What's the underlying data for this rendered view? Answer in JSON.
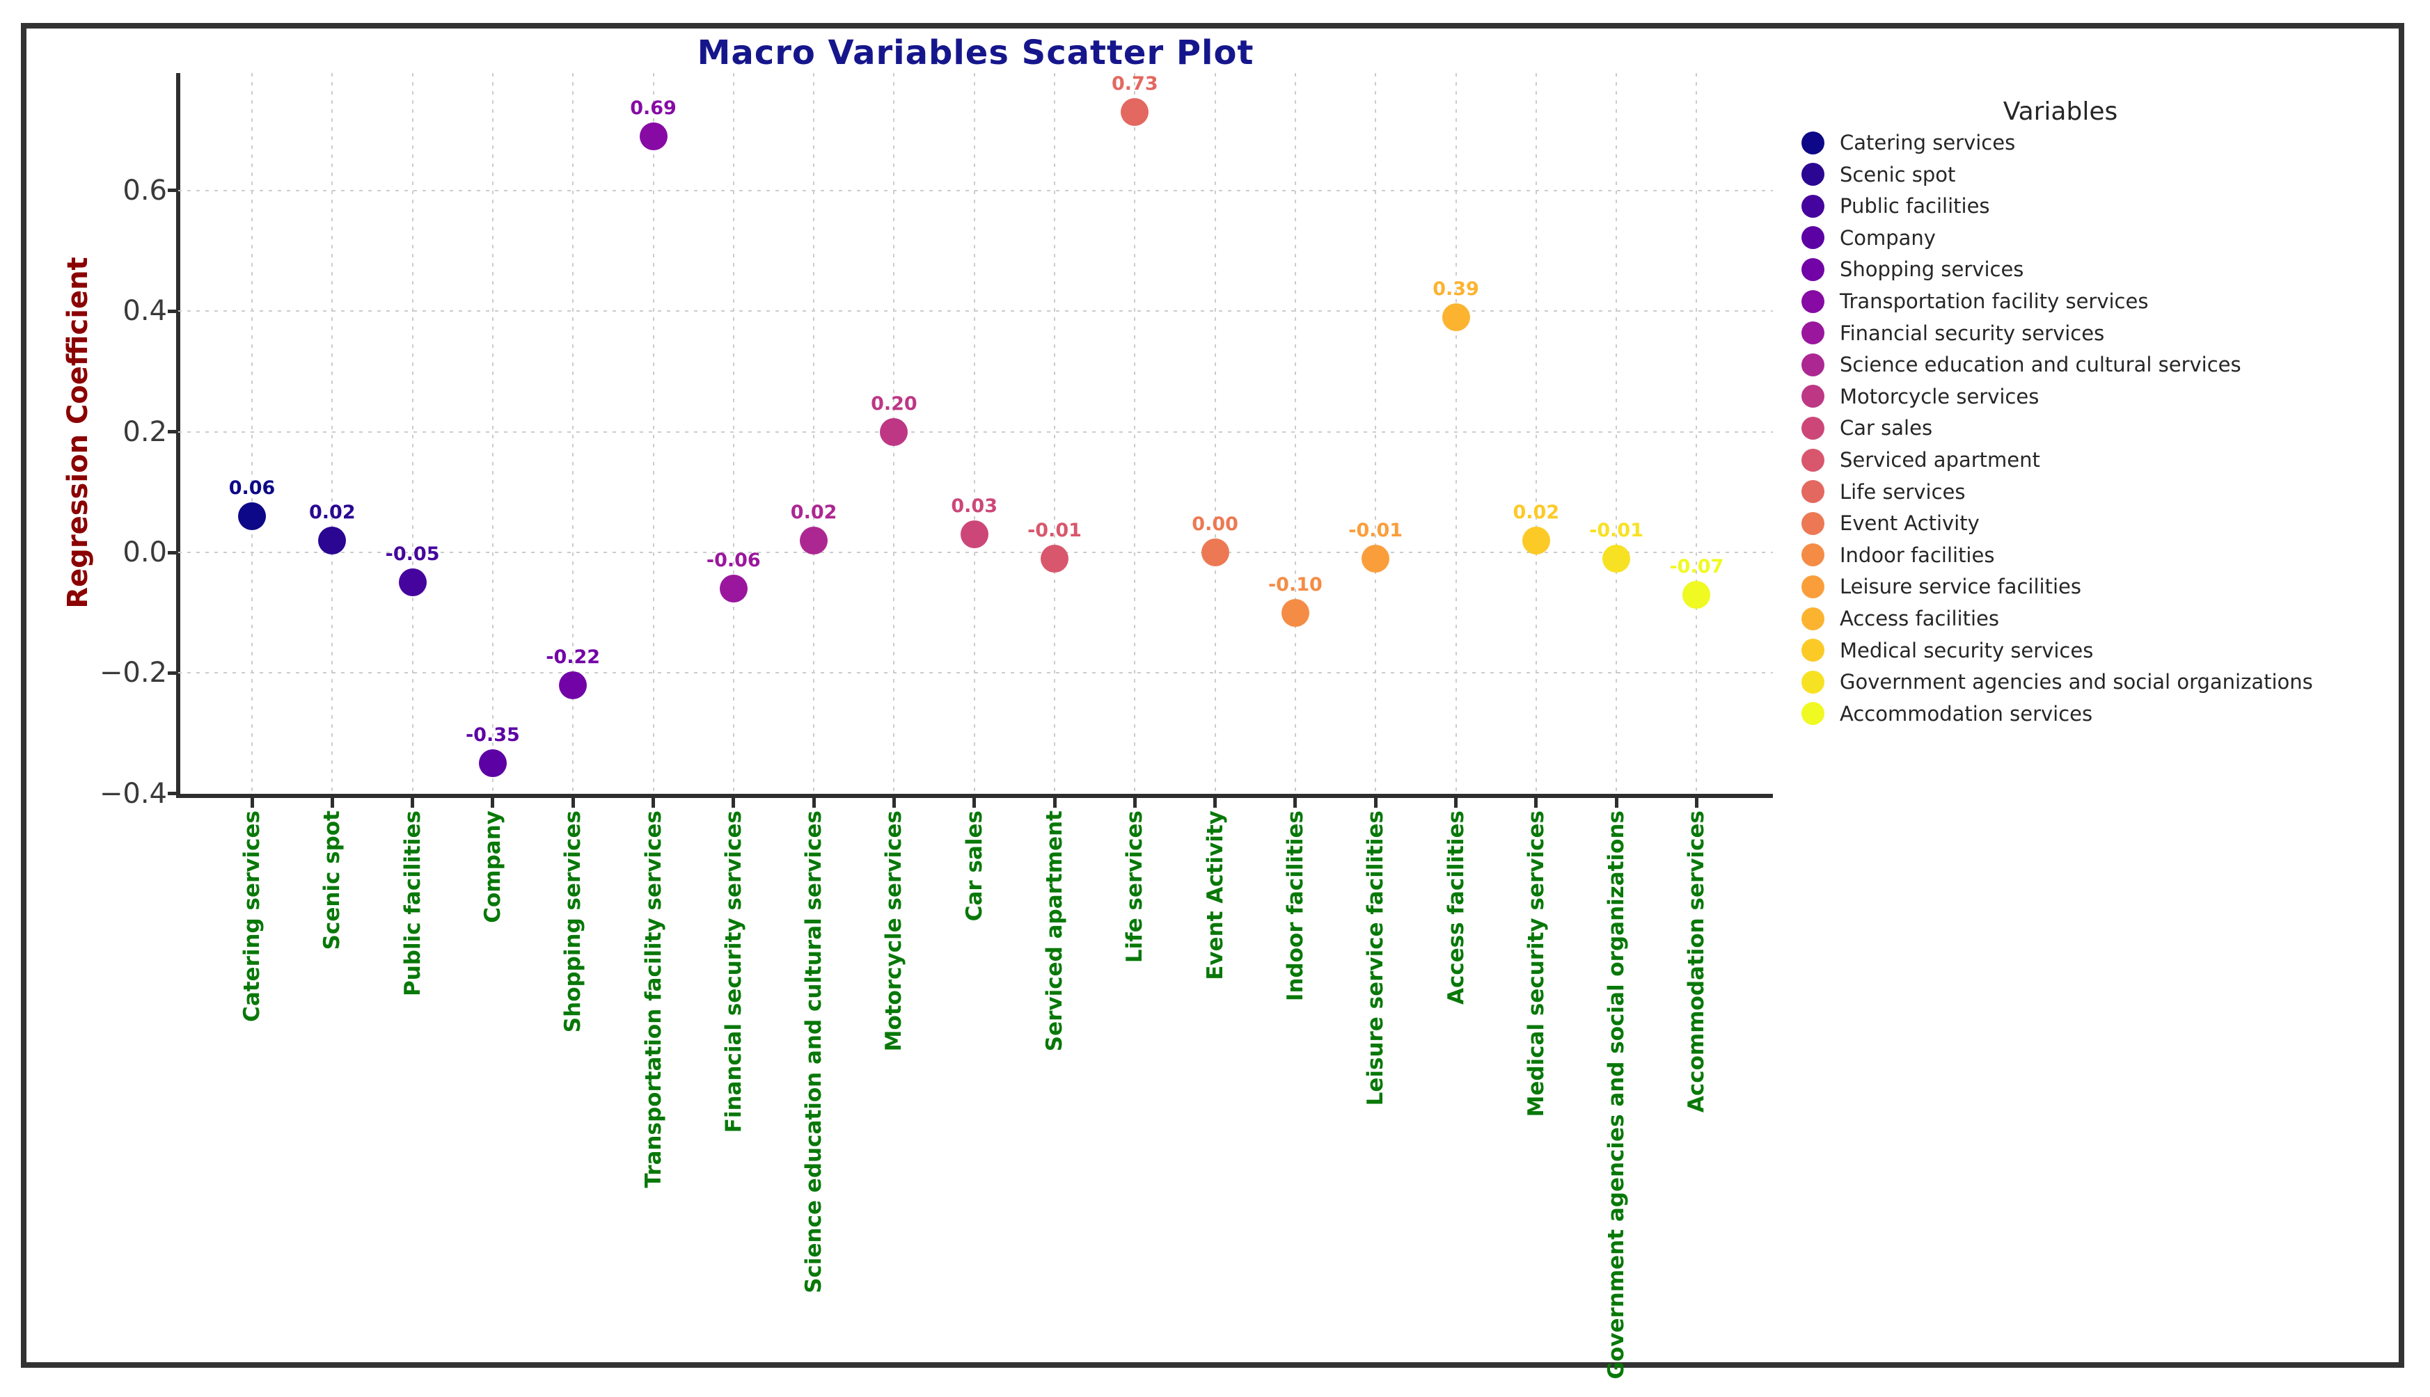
{
  "title": "Macro Variables Scatter Plot",
  "colors": {
    "title": "#16168c",
    "ylabel": "#8B0000",
    "xlabels": "#087808",
    "ticks": "#3a3a3a",
    "grid": "#cccccc",
    "axis": "#2e2e2e",
    "frame": "#333333",
    "legend_text": "#262626"
  },
  "chart_data": {
    "type": "scatter",
    "title": "Macro Variables Scatter Plot",
    "xlabel": "",
    "ylabel": "Regression Coefficient",
    "legend_title": "Variables",
    "legend_position": "right",
    "grid": true,
    "ylim": [
      -0.4,
      0.79
    ],
    "yticks": [
      0.6,
      0.4,
      0.2,
      0.0,
      -0.2,
      -0.4
    ],
    "ytick_labels": [
      "0.6",
      "0.4",
      "0.2",
      "0.0",
      "−0.2",
      "−0.4"
    ],
    "categories": [
      "Catering services",
      "Scenic spot",
      "Public facilities",
      "Company",
      "Shopping services",
      "Transportation facility services",
      "Financial security services",
      "Science education and cultural services",
      "Motorcycle services",
      "Car sales",
      "Serviced apartment",
      "Life services",
      "Event Activity",
      "Indoor facilities",
      "Leisure service facilities",
      "Access facilities",
      "Medical security services",
      "Government agencies and social organizations",
      "Accommodation services"
    ],
    "values": [
      0.06,
      0.02,
      -0.05,
      -0.35,
      -0.22,
      0.69,
      -0.06,
      0.02,
      0.2,
      0.03,
      -0.01,
      0.73,
      0.0,
      -0.1,
      -0.01,
      0.39,
      0.02,
      -0.01,
      -0.07
    ],
    "value_labels": [
      "0.06",
      "0.02",
      "-0.05",
      "-0.35",
      "-0.22",
      "0.69",
      "-0.06",
      "0.02",
      "0.20",
      "0.03",
      "-0.01",
      "0.73",
      "0.00",
      "-0.10",
      "-0.01",
      "0.39",
      "0.02",
      "-0.01",
      "-0.07"
    ],
    "point_colors": [
      "#0d0887",
      "#2a0693",
      "#46049e",
      "#5c01a4",
      "#7203a7",
      "#870aa5",
      "#9a179d",
      "#ad2792",
      "#bd3785",
      "#cc4778",
      "#d8576c",
      "#e3685f",
      "#ec7953",
      "#f48c46",
      "#fa9e3b",
      "#fcb330",
      "#fcca27",
      "#f7e123",
      "#f0f921"
    ]
  }
}
